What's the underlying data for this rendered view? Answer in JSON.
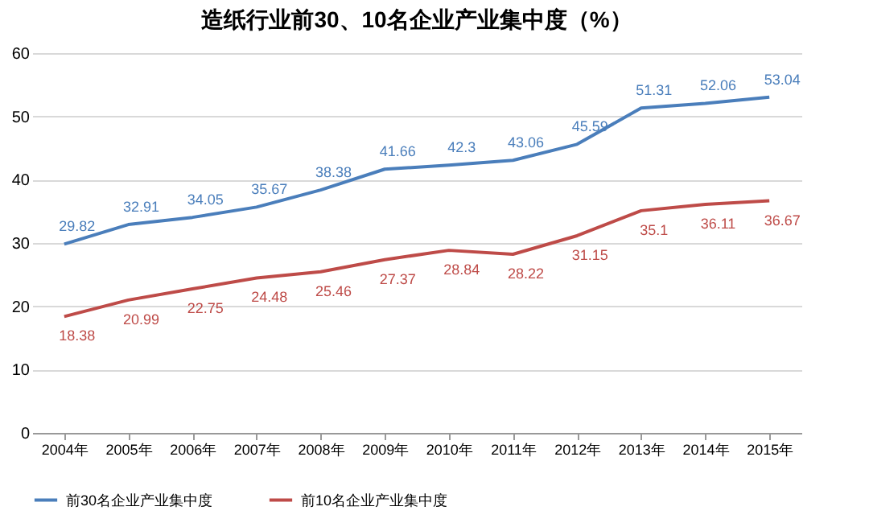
{
  "chart_data": {
    "type": "line",
    "title": "造纸行业前30、10名企业产业集中度（%）",
    "categories": [
      "2004年",
      "2005年",
      "2006年",
      "2007年",
      "2008年",
      "2009年",
      "2010年",
      "2011年",
      "2012年",
      "2013年",
      "2014年",
      "2015年"
    ],
    "series": [
      {
        "name": "前30名企业产业集中度",
        "color": "#4a7ebb",
        "values": [
          29.82,
          32.91,
          34.05,
          35.67,
          38.38,
          41.66,
          42.3,
          43.06,
          45.59,
          51.31,
          52.06,
          53.04
        ]
      },
      {
        "name": "前10名企业产业集中度",
        "color": "#be4b48",
        "values": [
          18.38,
          20.99,
          22.75,
          24.48,
          25.46,
          27.37,
          28.84,
          28.22,
          31.15,
          35.1,
          36.11,
          36.67
        ]
      }
    ],
    "ylim": [
      0,
      60
    ],
    "yticks": [
      0,
      10,
      20,
      30,
      40,
      50,
      60
    ],
    "grid": "y",
    "legend": "bottom",
    "data_labels": true,
    "marker": "none",
    "line_style": "solid"
  }
}
